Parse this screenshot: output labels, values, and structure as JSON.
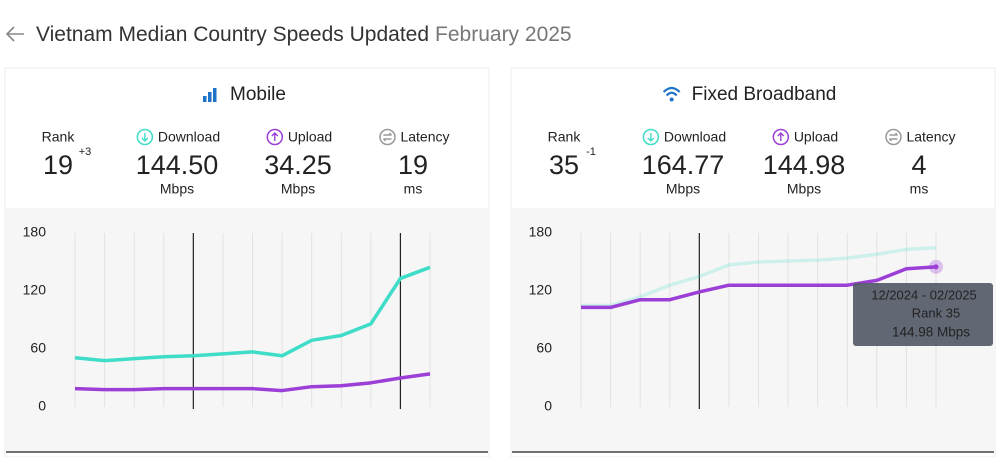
{
  "header": {
    "title": "Vietnam Median Country Speeds Updated",
    "date": "February 2025"
  },
  "chart_data": [
    {
      "type": "line",
      "title": "Mobile",
      "stats": [
        {
          "label": "Rank",
          "value": "19",
          "change": "+3",
          "change_color": "#4d8a1f"
        },
        {
          "label": "Download",
          "value": "144.50",
          "unit": "Mbps"
        },
        {
          "label": "Upload",
          "value": "34.25",
          "unit": "Mbps"
        },
        {
          "label": "Latency",
          "value": "19",
          "unit": "ms"
        }
      ],
      "categories": [
        null,
        null,
        null,
        null,
        null,
        null,
        null,
        null,
        null,
        null,
        null,
        null,
        null
      ],
      "series": [
        {
          "name": "Download",
          "color": "#3fdcc8",
          "opacity": 1,
          "values": [
            51,
            48,
            50,
            52,
            53,
            55,
            57,
            53,
            69,
            74,
            86,
            133,
            144.5
          ]
        },
        {
          "name": "Upload",
          "color": "#9b3fd6",
          "opacity": 1,
          "values": [
            19,
            18,
            18,
            19,
            19,
            19,
            19,
            17,
            21,
            22,
            25,
            30,
            34.25
          ]
        }
      ],
      "ylim": [
        0,
        180
      ],
      "yticks": [
        0,
        60,
        120,
        180
      ]
    },
    {
      "type": "line",
      "title": "Fixed Broadband",
      "stats": [
        {
          "label": "Rank",
          "value": "35",
          "change": "-1",
          "change_color": "#c8302f"
        },
        {
          "label": "Download",
          "value": "164.77",
          "unit": "Mbps"
        },
        {
          "label": "Upload",
          "value": "144.98",
          "unit": "Mbps"
        },
        {
          "label": "Latency",
          "value": "4",
          "unit": "ms"
        }
      ],
      "categories": [
        null,
        null,
        null,
        null,
        null,
        null,
        null,
        null,
        null,
        null,
        null,
        null,
        null
      ],
      "series": [
        {
          "name": "Download",
          "color": "#3fdcc8",
          "opacity": 0.22,
          "values": [
            105,
            105,
            114,
            126,
            135,
            147,
            150,
            151,
            152,
            154,
            158,
            163,
            164.77
          ]
        },
        {
          "name": "Upload",
          "color": "#9b3fd6",
          "opacity": 1,
          "values": [
            103,
            103,
            111,
            111,
            119,
            126,
            126,
            126,
            126,
            126,
            131,
            143,
            144.98
          ]
        }
      ],
      "ylim": [
        0,
        180
      ],
      "yticks": [
        0,
        60,
        120,
        180
      ],
      "tooltip": {
        "period": "12/2024 - 02/2025",
        "rank": "Rank 35",
        "value": "144.98 Mbps"
      }
    }
  ]
}
